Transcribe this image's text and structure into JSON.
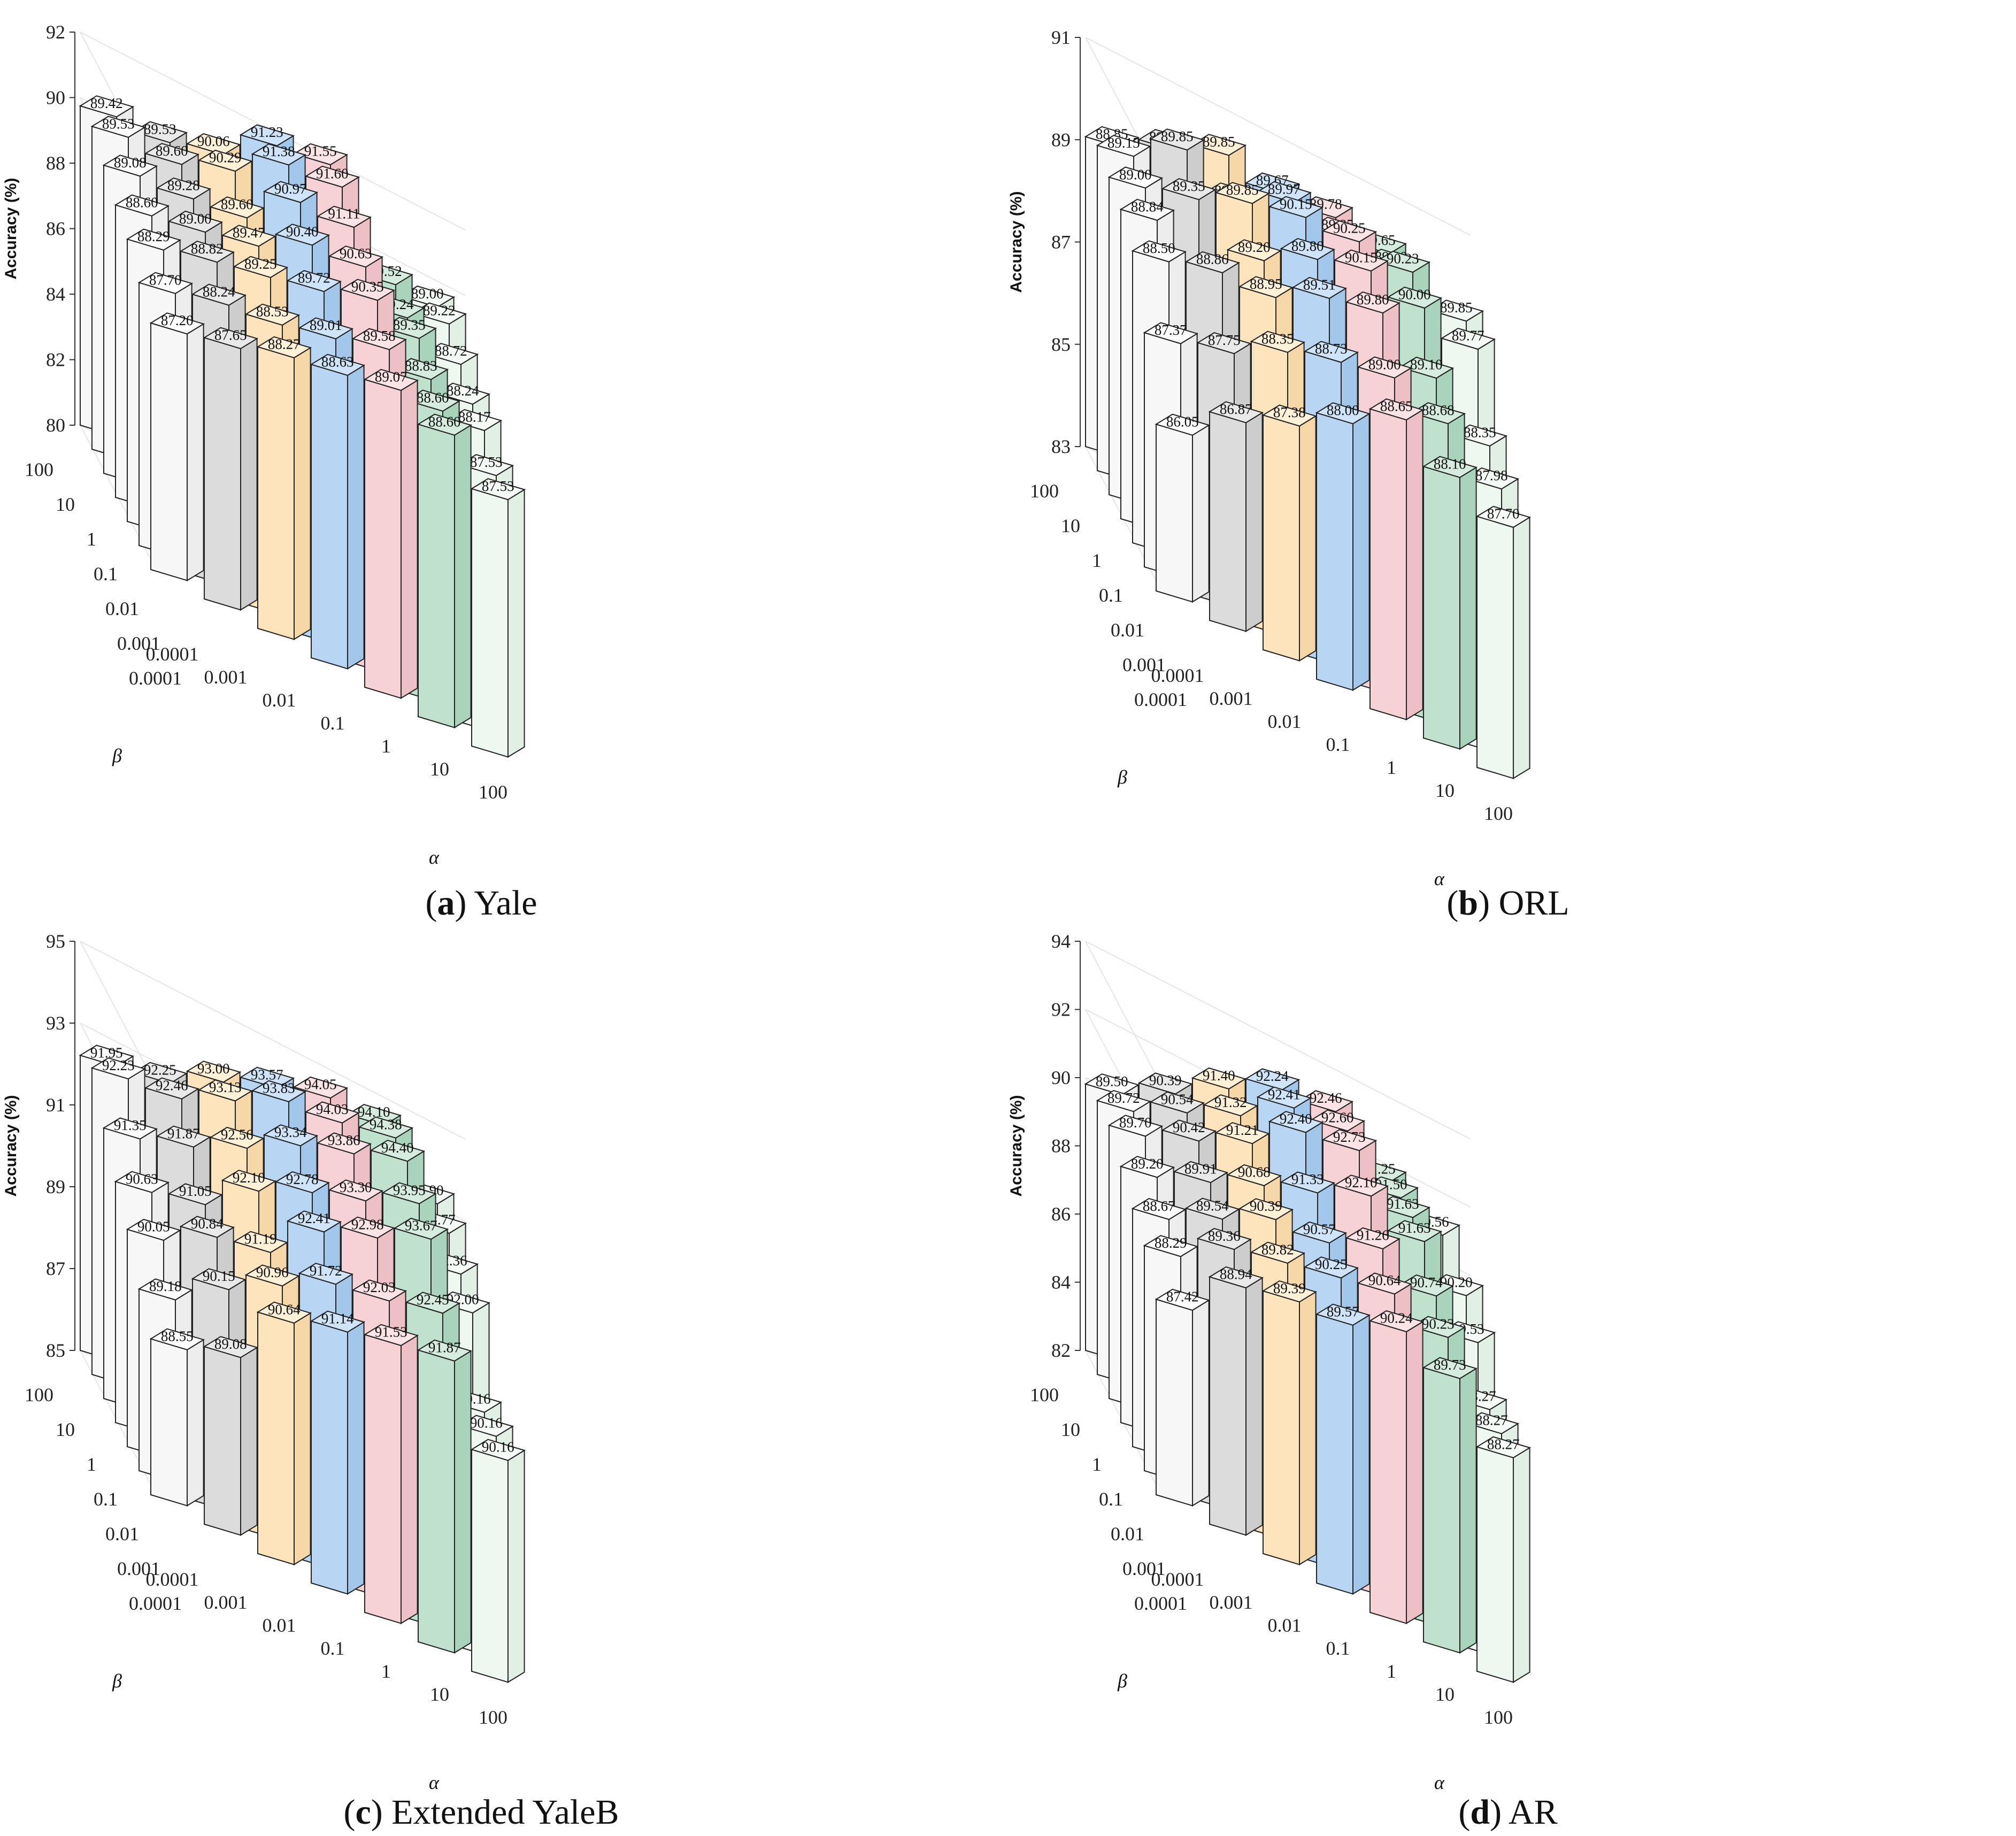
{
  "chart_data": [
    {
      "type": "bar3d",
      "caption": {
        "letter": "a",
        "name": "Yale"
      },
      "zlabel": "Accuracy (%)",
      "xlabel": "α",
      "ylabel": "β",
      "zlim": [
        80,
        92
      ],
      "zticks": [
        "80",
        "82",
        "84",
        "86",
        "88",
        "90",
        "92"
      ],
      "alpha_labels": [
        "0.0001",
        "0.001",
        "0.01",
        "0.1",
        "1",
        "10",
        "100"
      ],
      "beta_labels": [
        "0.0001",
        "0.001",
        "0.01",
        "0.1",
        "1",
        "10",
        "100"
      ],
      "bars": [
        {
          "beta": "100",
          "values": [
            "89.42",
            "89.53",
            "90.06",
            "91.23",
            "91.55",
            "88.67",
            "89.00"
          ]
        },
        {
          "beta": "10",
          "values": [
            "89.53",
            "89.60",
            "90.29",
            "91.38",
            "91.60",
            "89.52",
            "89.22"
          ]
        },
        {
          "beta": "1",
          "values": [
            "89.08",
            "89.28",
            "89.60",
            "90.97",
            "91.11",
            "89.24",
            "88.72"
          ]
        },
        {
          "beta": "0.1",
          "values": [
            "88.60",
            "89.00",
            "89.47",
            "90.40",
            "90.63",
            "89.35",
            "88.24"
          ]
        },
        {
          "beta": "0.01",
          "values": [
            "88.29",
            "88.82",
            "89.25",
            "89.72",
            "90.35",
            "88.83",
            "88.17"
          ]
        },
        {
          "beta": "0.001",
          "values": [
            "87.70",
            "88.24",
            "88.53",
            "89.01",
            "89.58",
            "88.60",
            "87.53"
          ]
        },
        {
          "beta": "0.0001",
          "values": [
            "87.20",
            "87.65",
            "88.27",
            "88.63",
            "89.07",
            "88.60",
            "87.53"
          ]
        }
      ]
    },
    {
      "type": "bar3d",
      "caption": {
        "letter": "b",
        "name": "ORL"
      },
      "zlabel": "Accuracy (%)",
      "xlabel": "α",
      "ylabel": "β",
      "zlim": [
        83,
        91
      ],
      "zticks": [
        "83",
        "85",
        "87",
        "89",
        "91"
      ],
      "alpha_labels": [
        "0.0001",
        "0.001",
        "0.01",
        "0.1",
        "1",
        "10",
        "100"
      ],
      "beta_labels": [
        "0.0001",
        "0.001",
        "0.01",
        "0.1",
        "1",
        "10",
        "100"
      ],
      "bars": [
        {
          "beta": "100",
          "values": [
            "88.85",
            "89.37",
            "89.85",
            "89.67",
            "89.78",
            "89.65",
            "88.90"
          ]
        },
        {
          "beta": "10",
          "values": [
            "89.15",
            "89.85",
            "89.37",
            "89.97",
            "89.85",
            "89.80",
            "89.33"
          ]
        },
        {
          "beta": "1",
          "values": [
            "89.00",
            "89.35",
            "89.85",
            "90.15",
            "90.25",
            "90.23",
            "89.85"
          ]
        },
        {
          "beta": "0.1",
          "values": [
            "88.84",
            "88.18",
            "89.20",
            "89.80",
            "90.15",
            "90.00",
            "89.77"
          ]
        },
        {
          "beta": "0.01",
          "values": [
            "88.50",
            "88.86",
            "88.95",
            "89.51",
            "89.80",
            "89.10",
            "88.35"
          ]
        },
        {
          "beta": "0.001",
          "values": [
            "87.37",
            "87.75",
            "88.35",
            "88.73",
            "89.00",
            "88.68",
            "87.98"
          ]
        },
        {
          "beta": "0.0001",
          "values": [
            "86.05",
            "86.87",
            "87.38",
            "88.00",
            "88.65",
            "88.10",
            "87.70"
          ]
        }
      ]
    },
    {
      "type": "bar3d",
      "caption": {
        "letter": "c",
        "name": "Extended YaleB"
      },
      "zlabel": "Accuracy (%)",
      "xlabel": "α",
      "ylabel": "β",
      "zlim": [
        85,
        95
      ],
      "zticks": [
        "85",
        "87",
        "89",
        "91",
        "93",
        "95"
      ],
      "alpha_labels": [
        "0.0001",
        "0.001",
        "0.01",
        "0.1",
        "1",
        "10",
        "100"
      ],
      "beta_labels": [
        "0.0001",
        "0.001",
        "0.01",
        "0.1",
        "1",
        "10",
        "100"
      ],
      "bars": [
        {
          "beta": "100",
          "values": [
            "91.95",
            "92.25",
            "93.00",
            "93.57",
            "94.05",
            "94.10",
            "92.90"
          ]
        },
        {
          "beta": "10",
          "values": [
            "92.23",
            "92.46",
            "93.13",
            "93.83",
            "94.03",
            "94.38",
            "92.77"
          ]
        },
        {
          "beta": "1",
          "values": [
            "91.35",
            "91.87",
            "92.56",
            "93.34",
            "93.86",
            "94.40",
            "92.36"
          ]
        },
        {
          "beta": "0.1",
          "values": [
            "90.63",
            "91.05",
            "92.10",
            "92.78",
            "93.30",
            "93.95",
            "92.00"
          ]
        },
        {
          "beta": "0.01",
          "values": [
            "90.05",
            "90.84",
            "91.19",
            "92.41",
            "92.98",
            "93.67",
            "90.16"
          ]
        },
        {
          "beta": "0.001",
          "values": [
            "89.18",
            "90.15",
            "90.96",
            "91.72",
            "92.03",
            "92.45",
            "90.16"
          ]
        },
        {
          "beta": "0.0001",
          "values": [
            "88.55",
            "89.08",
            "90.64",
            "91.14",
            "91.53",
            "91.87",
            "90.16"
          ]
        }
      ]
    },
    {
      "type": "bar3d",
      "caption": {
        "letter": "d",
        "name": "AR"
      },
      "zlabel": "Accuracy (%)",
      "xlabel": "α",
      "ylabel": "β",
      "zlim": [
        82,
        94
      ],
      "zticks": [
        "82",
        "84",
        "86",
        "88",
        "90",
        "92",
        "94"
      ],
      "alpha_labels": [
        "0.0001",
        "0.001",
        "0.01",
        "0.1",
        "1",
        "10",
        "100"
      ],
      "beta_labels": [
        "0.0001",
        "0.001",
        "0.01",
        "0.1",
        "1",
        "10",
        "100"
      ],
      "bars": [
        {
          "beta": "100",
          "values": [
            "89.50",
            "90.39",
            "91.40",
            "92.24",
            "92.46",
            "91.25",
            "90.56"
          ]
        },
        {
          "beta": "10",
          "values": [
            "89.72",
            "90.54",
            "91.32",
            "92.41",
            "92.60",
            "91.50",
            "87.61"
          ]
        },
        {
          "beta": "1",
          "values": [
            "89.70",
            "90.42",
            "91.21",
            "92.40",
            "92.73",
            "91.63",
            "90.20"
          ]
        },
        {
          "beta": "0.1",
          "values": [
            "89.20",
            "89.91",
            "90.68",
            "91.33",
            "92.10",
            "91.63",
            "89.53"
          ]
        },
        {
          "beta": "0.01",
          "values": [
            "88.67",
            "89.54",
            "90.39",
            "90.57",
            "91.26",
            "90.74",
            "88.27"
          ]
        },
        {
          "beta": "0.001",
          "values": [
            "88.29",
            "89.36",
            "89.82",
            "90.25",
            "90.64",
            "90.23",
            "88.27"
          ]
        },
        {
          "beta": "0.0001",
          "values": [
            "87.42",
            "88.94",
            "89.39",
            "89.57",
            "90.24",
            "89.73",
            "88.27"
          ]
        }
      ]
    }
  ],
  "series_colors": {
    "front": [
      "#f7f7f7",
      "#dcdcdc",
      "#fde4bd",
      "#b8d6f3",
      "#f6d2d6",
      "#bfe1cd",
      "#eef7f0"
    ],
    "top": [
      "#ffffff",
      "#e9e9e9",
      "#fff0d8",
      "#cfe4f8",
      "#fbe3e6",
      "#d6ecdf",
      "#f7fbf8"
    ],
    "side": [
      "#ededed",
      "#cdcdcd",
      "#f5d7a8",
      "#a3c7eb",
      "#edc0c6",
      "#a9d3ba",
      "#e1efe4"
    ]
  }
}
